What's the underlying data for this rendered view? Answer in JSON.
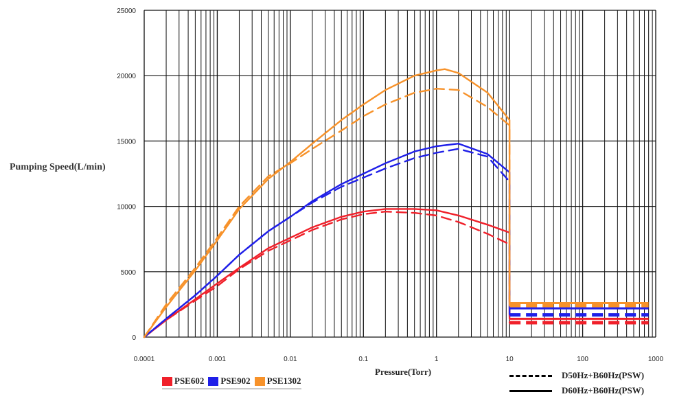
{
  "chart_data": {
    "type": "line",
    "title": "",
    "xlabel": "Pressure(Torr)",
    "ylabel": "Pumping Speed(L/min)",
    "x_scale": "log",
    "xlim": [
      0.0001,
      1000
    ],
    "ylim": [
      0,
      25000
    ],
    "x_ticks": [
      "0.0001",
      "0.001",
      "0.01",
      "0.1",
      "1",
      "10",
      "100",
      "1000"
    ],
    "y_ticks": [
      "0",
      "5000",
      "10000",
      "15000",
      "20000",
      "25000"
    ],
    "grid": true,
    "legend": {
      "models": [
        {
          "name": "PSE602",
          "color": "#f0202a"
        },
        {
          "name": "PSE902",
          "color": "#1f1fe8"
        },
        {
          "name": "PSE1302",
          "color": "#f7922a"
        }
      ],
      "line_styles": [
        {
          "label": "D50Hz+B60Hz(PSW)",
          "style": "dashed"
        },
        {
          "label": "D60Hz+B60Hz(PSW)",
          "style": "solid"
        }
      ]
    },
    "series": [
      {
        "name": "PSE602",
        "style": "solid",
        "color": "#f0202a",
        "x": [
          0.0001,
          0.0002,
          0.0005,
          0.001,
          0.002,
          0.005,
          0.01,
          0.02,
          0.05,
          0.1,
          0.2,
          0.5,
          1,
          2,
          5,
          10
        ],
        "y": [
          0,
          1300,
          2900,
          4100,
          5300,
          6800,
          7600,
          8400,
          9200,
          9600,
          9800,
          9800,
          9700,
          9300,
          8600,
          8000
        ]
      },
      {
        "name": "PSE602",
        "style": "dashed",
        "color": "#f0202a",
        "x": [
          0.0001,
          0.0002,
          0.0005,
          0.001,
          0.002,
          0.005,
          0.01,
          0.02,
          0.05,
          0.1,
          0.2,
          0.5,
          1,
          2,
          5,
          10
        ],
        "y": [
          0,
          1300,
          2800,
          3900,
          5200,
          6600,
          7400,
          8200,
          9000,
          9400,
          9600,
          9500,
          9300,
          8800,
          7900,
          7100
        ]
      },
      {
        "name": "PSE902",
        "style": "solid",
        "color": "#1f1fe8",
        "x": [
          0.0001,
          0.0002,
          0.0005,
          0.001,
          0.002,
          0.005,
          0.01,
          0.02,
          0.05,
          0.1,
          0.2,
          0.5,
          1,
          2,
          5,
          10
        ],
        "y": [
          0,
          1400,
          3200,
          4700,
          6300,
          8100,
          9200,
          10400,
          11700,
          12500,
          13300,
          14200,
          14600,
          14800,
          14000,
          12600
        ]
      },
      {
        "name": "PSE902",
        "style": "dashed",
        "color": "#1f1fe8",
        "x": [
          0.0001,
          0.0002,
          0.0005,
          0.001,
          0.002,
          0.005,
          0.01,
          0.02,
          0.05,
          0.1,
          0.2,
          0.5,
          1,
          2,
          5,
          10
        ],
        "y": [
          0,
          1400,
          3200,
          4700,
          6300,
          8100,
          9200,
          10300,
          11500,
          12200,
          12900,
          13700,
          14100,
          14400,
          13800,
          11900
        ]
      },
      {
        "name": "PSE1302",
        "style": "solid",
        "color": "#f7922a",
        "x": [
          0.0001,
          0.0002,
          0.0005,
          0.001,
          0.002,
          0.005,
          0.01,
          0.02,
          0.05,
          0.1,
          0.2,
          0.5,
          1,
          1.3,
          2,
          5,
          10
        ],
        "y": [
          0,
          2300,
          5100,
          7400,
          9800,
          12100,
          13400,
          14800,
          16600,
          17800,
          18900,
          20000,
          20400,
          20500,
          20200,
          18700,
          16600
        ]
      },
      {
        "name": "PSE1302",
        "style": "dashed",
        "color": "#f7922a",
        "x": [
          0.0001,
          0.0002,
          0.0005,
          0.001,
          0.002,
          0.005,
          0.01,
          0.02,
          0.05,
          0.1,
          0.2,
          0.5,
          1,
          2,
          5,
          10
        ],
        "y": [
          0,
          2500,
          5300,
          7600,
          10000,
          12300,
          13300,
          14400,
          15800,
          16900,
          17800,
          18700,
          19000,
          18900,
          17600,
          16200
        ]
      }
    ],
    "flat_segments": [
      {
        "name": "PSE1302",
        "style": "solid",
        "color": "#f7922a",
        "x": [
          10,
          800
        ],
        "y": 2600
      },
      {
        "name": "PSE1302",
        "style": "dashed",
        "color": "#f7922a",
        "x": [
          10,
          800
        ],
        "y": 2400
      },
      {
        "name": "PSE902",
        "style": "solid",
        "color": "#1f1fe8",
        "x": [
          10,
          800
        ],
        "y": 2200
      },
      {
        "name": "PSE902",
        "style": "dashed",
        "color": "#1f1fe8",
        "x": [
          10,
          800
        ],
        "y": 1700
      },
      {
        "name": "PSE602",
        "style": "solid",
        "color": "#f0202a",
        "x": [
          10,
          800
        ],
        "y": 1400
      },
      {
        "name": "PSE602",
        "style": "dashed",
        "color": "#f0202a",
        "x": [
          10,
          800
        ],
        "y": 1100
      }
    ]
  }
}
